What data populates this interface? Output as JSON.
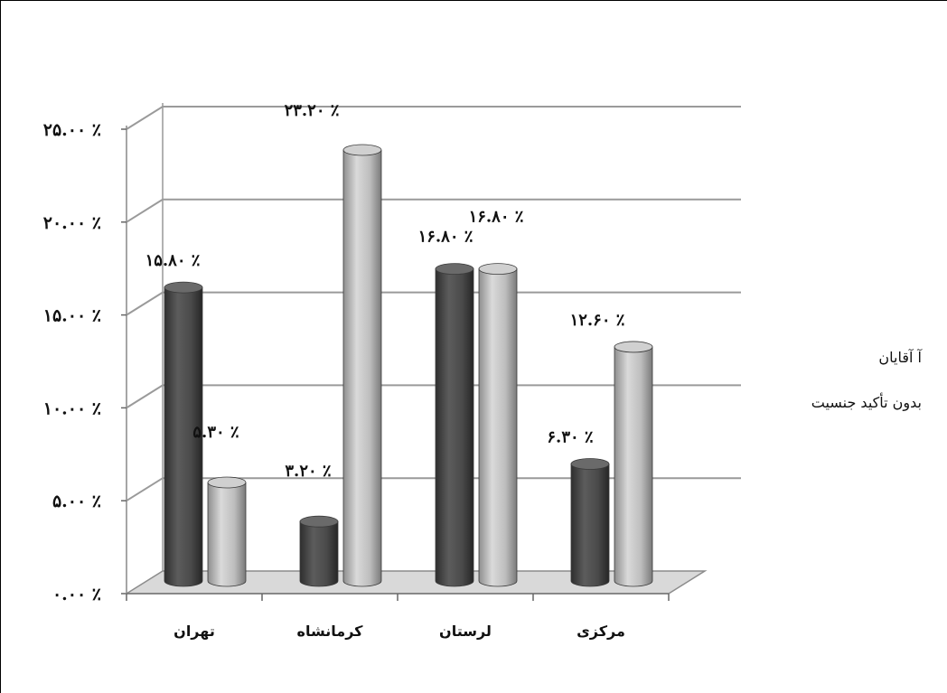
{
  "chart_data": {
    "type": "bar",
    "categories": [
      "تهران",
      "کرمانشاه",
      "لرستان",
      "مرکزی"
    ],
    "series": [
      {
        "name": "آ آقایان",
        "color": "#4a4a4a",
        "values": [
          15.8,
          3.2,
          16.8,
          6.3
        ],
        "labels": [
          "۱۵.۸۰ ٪",
          "۳.۲۰ ٪",
          "۱۶.۸۰ ٪",
          "۶.۳۰ ٪"
        ]
      },
      {
        "name": "بدون تأکید جنسیت",
        "color": "#b4b4b4",
        "values": [
          5.3,
          23.2,
          16.8,
          12.6
        ],
        "labels": [
          "۵.۳۰ ٪",
          "۲۳.۲۰ ٪",
          "۱۶.۸۰ ٪",
          "۱۲.۶۰ ٪"
        ]
      }
    ],
    "y_ticks": [
      "۰.۰۰ ٪",
      "۵.۰۰ ٪",
      "۱۰.۰۰ ٪",
      "۱۵.۰۰ ٪",
      "۲۰.۰۰ ٪",
      "۲۵.۰۰ ٪"
    ],
    "ylim": [
      0,
      25
    ],
    "grid": true,
    "legend_position": "right"
  },
  "legend": {
    "item1": "آ آقایان",
    "item2": "بدون تأکید جنسیت"
  }
}
